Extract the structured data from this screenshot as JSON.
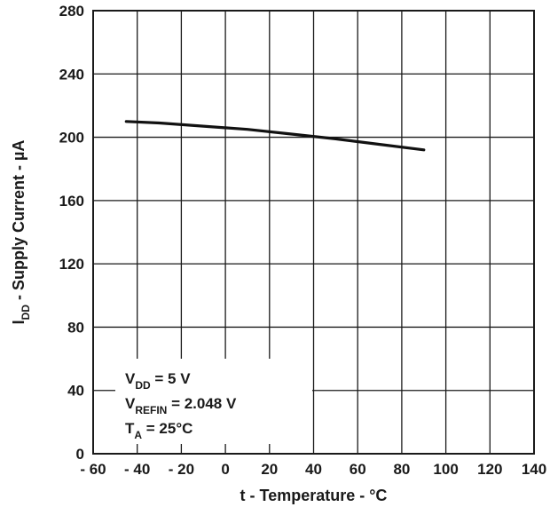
{
  "chart_data": {
    "type": "line",
    "title": "",
    "xlabel": "t - Temperature - °C",
    "ylabel_main": "I",
    "ylabel_sub": "DD",
    "ylabel_rest": " - Supply Current - µA",
    "xlim": [
      -60,
      140
    ],
    "ylim": [
      0,
      280
    ],
    "x_ticks": [
      -60,
      -40,
      -20,
      0,
      20,
      40,
      60,
      80,
      100,
      120,
      140
    ],
    "x_tick_labels": [
      "- 60",
      "- 40",
      "- 20",
      "0",
      "20",
      "40",
      "60",
      "80",
      "100",
      "120",
      "140"
    ],
    "y_ticks": [
      0,
      40,
      80,
      120,
      160,
      200,
      240,
      280
    ],
    "y_tick_labels": [
      "0",
      "40",
      "80",
      "120",
      "160",
      "200",
      "240",
      "280"
    ],
    "grid": true,
    "series": [
      {
        "x": [
          -45,
          -30,
          -10,
          10,
          30,
          50,
          70,
          90
        ],
        "y": [
          210,
          209,
          207,
          205,
          202,
          199,
          195.5,
          192
        ]
      }
    ],
    "annotations": [
      {
        "main": "V",
        "sub": "DD",
        "rest": " = 5 V"
      },
      {
        "main": "V",
        "sub": "REFIN",
        "rest": " = 2.048 V"
      },
      {
        "main": "T",
        "sub": "A",
        "rest": " = 25°C"
      }
    ],
    "line_color": "#111111",
    "grid_color": "#1a1a1a"
  }
}
